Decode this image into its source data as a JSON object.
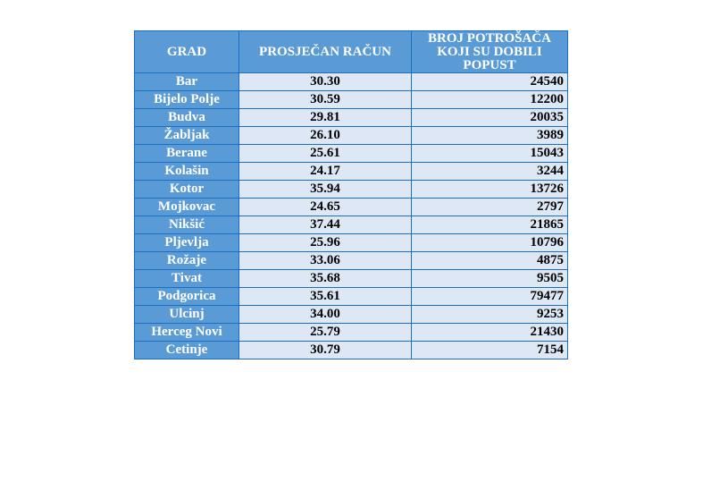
{
  "table": {
    "headers": [
      "GRAD",
      "PROSJEČAN RAČUN",
      "BROJ POTROŠAČA KOJI SU DOBILI POPUST"
    ],
    "rows": [
      [
        "Bar",
        "30.30",
        "24540"
      ],
      [
        "Bijelo Polje",
        "30.59",
        "12200"
      ],
      [
        "Budva",
        "29.81",
        "20035"
      ],
      [
        "Žabljak",
        "26.10",
        "3989"
      ],
      [
        "Berane",
        "25.61",
        "15043"
      ],
      [
        "Kolašin",
        "24.17",
        "3244"
      ],
      [
        "Kotor",
        "35.94",
        "13726"
      ],
      [
        "Mojkovac",
        "24.65",
        "2797"
      ],
      [
        "Nikšić",
        "37.44",
        "21865"
      ],
      [
        "Pljevlja",
        "25.96",
        "10796"
      ],
      [
        "Rožaje",
        "33.06",
        "4875"
      ],
      [
        "Tivat",
        "35.68",
        "9505"
      ],
      [
        "Podgorica",
        "35.61",
        "79477"
      ],
      [
        "Ulcinj",
        "34.00",
        "9253"
      ],
      [
        "Herceg Novi",
        "25.79",
        "21430"
      ],
      [
        "Cetinje",
        "30.79",
        "7154"
      ]
    ]
  },
  "colors": {
    "header_bg": "#5b9bd5",
    "cell_bg": "#dde8f4",
    "border": "#1a6fc4"
  }
}
